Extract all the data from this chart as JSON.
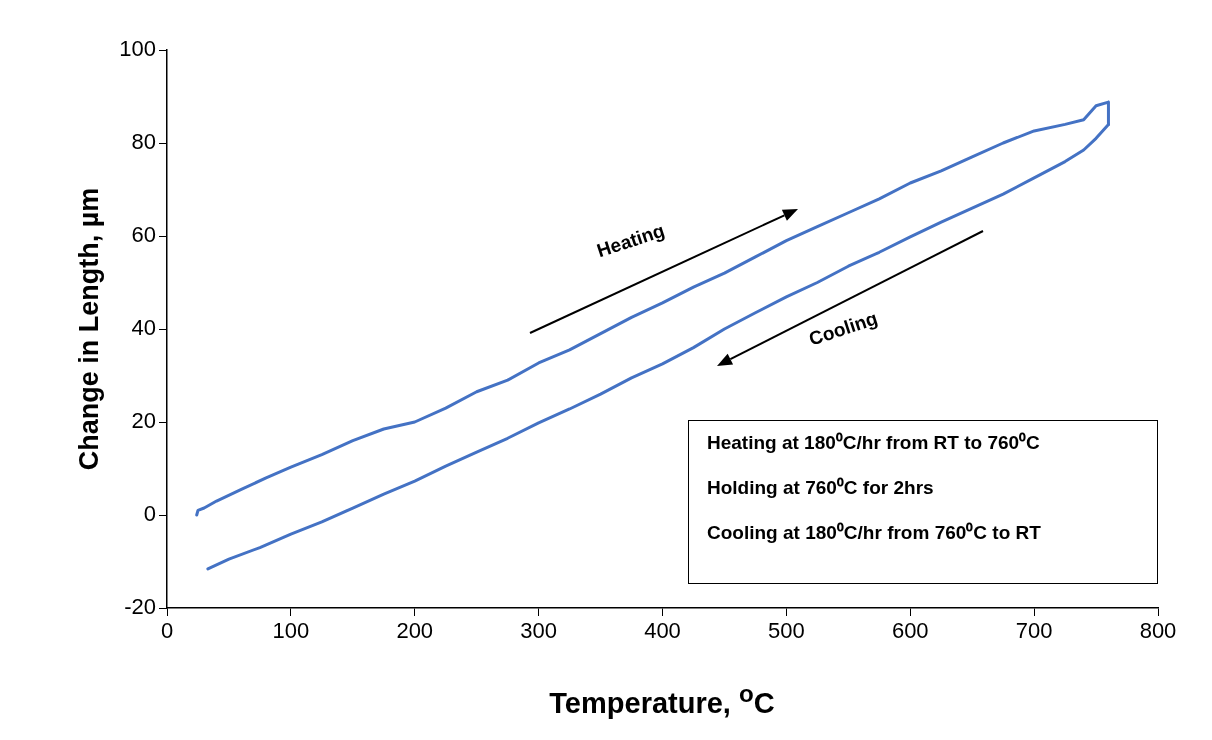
{
  "chart_data": {
    "type": "line",
    "xlabel": "Temperature, $^{o}$C",
    "ylabel": "Change in Length, µm",
    "xlim": [
      0,
      800
    ],
    "xticks": [
      0,
      100,
      200,
      300,
      400,
      500,
      600,
      700,
      800
    ],
    "ylim": [
      -20,
      100
    ],
    "yticks": [
      -20,
      0,
      20,
      40,
      60,
      80,
      100
    ],
    "grid": false,
    "legend": false,
    "marker": "none",
    "line_style": "solid",
    "series": [
      {
        "color": "#4472c4",
        "x": [
          24,
          25,
          30,
          40,
          60,
          80,
          100,
          125,
          150,
          175,
          200,
          225,
          250,
          275,
          300,
          325,
          350,
          375,
          400,
          425,
          450,
          475,
          500,
          525,
          550,
          575,
          600,
          625,
          650,
          675,
          700,
          725,
          740,
          750,
          760,
          760
        ],
        "values": [
          0,
          1,
          1.5,
          3,
          5.5,
          8,
          10.3,
          13,
          16,
          18.5,
          20,
          23,
          26.5,
          29,
          32.7,
          35.5,
          39,
          42.5,
          45.6,
          49,
          52,
          55.5,
          59,
          62,
          65,
          68,
          71.4,
          74,
          77,
          80,
          82.6,
          84,
          85,
          88,
          88.8,
          84
        ]
      },
      {
        "color": "#4472c4",
        "x": [
          760,
          750,
          740,
          725,
          700,
          675,
          650,
          625,
          600,
          575,
          550,
          525,
          500,
          475,
          450,
          425,
          400,
          375,
          350,
          325,
          300,
          275,
          250,
          225,
          200,
          175,
          150,
          125,
          100,
          75,
          50,
          33
        ],
        "values": [
          84,
          81,
          78.5,
          76,
          72.5,
          69,
          66,
          63,
          59.8,
          56.5,
          53.5,
          50,
          46.9,
          43.5,
          40,
          36,
          32.5,
          29.5,
          26,
          22.8,
          19.8,
          16.5,
          13.5,
          10.5,
          7.3,
          4.5,
          1.5,
          -1.5,
          -4.1,
          -7,
          -9.5,
          -11.6
        ]
      }
    ],
    "annotations": [
      "Heating",
      "Cooling",
      "Heating at 180⁰C/hr from RT to 760⁰C",
      "Holding at 760⁰C for 2hrs",
      "Cooling at 180⁰C/hr from 760⁰C to RT"
    ]
  }
}
